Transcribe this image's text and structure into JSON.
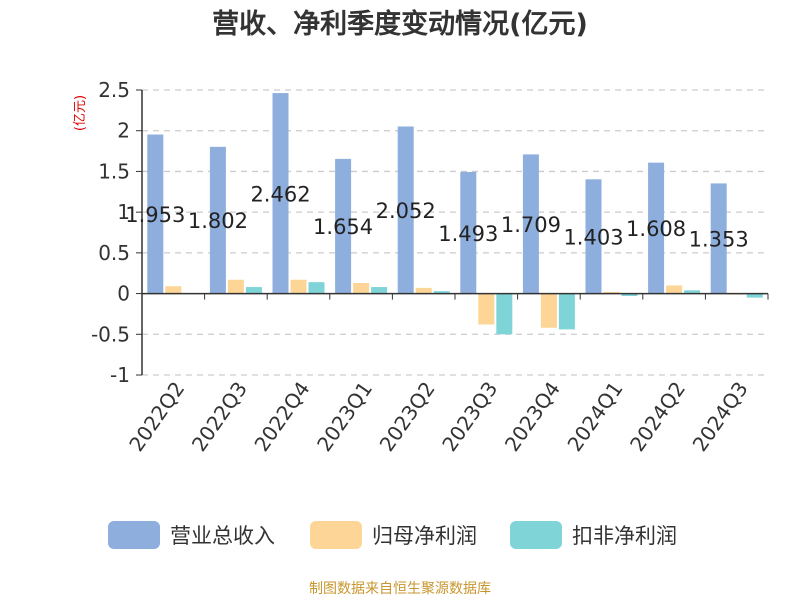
{
  "chart_data": {
    "type": "bar",
    "title": "营收、净利季度变动情况(亿元)",
    "unit_label": "(亿元)",
    "categories": [
      "2022Q2",
      "2022Q3",
      "2022Q4",
      "2023Q1",
      "2023Q2",
      "2023Q3",
      "2023Q4",
      "2024Q1",
      "2024Q2",
      "2024Q3"
    ],
    "series": [
      {
        "name": "营业总收入",
        "color": "#8eaedd",
        "values": [
          1.953,
          1.802,
          2.462,
          1.654,
          2.052,
          1.493,
          1.709,
          1.403,
          1.608,
          1.353
        ],
        "labels": [
          "1.953",
          "1.802",
          "2.462",
          "1.654",
          "2.052",
          "1.493",
          "1.709",
          "1.403",
          "1.608",
          "1.353"
        ]
      },
      {
        "name": "归母净利润",
        "color": "#fdd596",
        "values": [
          0.09,
          0.17,
          0.17,
          0.13,
          0.07,
          -0.38,
          -0.42,
          0.02,
          0.1,
          -0.01
        ]
      },
      {
        "name": "扣非净利润",
        "color": "#7fd4d7",
        "values": [
          0.005,
          0.08,
          0.14,
          0.08,
          0.03,
          -0.5,
          -0.44,
          -0.03,
          0.04,
          -0.05
        ]
      }
    ],
    "y_ticks": [
      "2.5",
      "2",
      "1.5",
      "1",
      "0.5",
      "0",
      "-0.5",
      "-1"
    ],
    "ylim": [
      -1,
      2.5
    ],
    "grid": true,
    "legend_position": "bottom"
  },
  "footer": {
    "source": "制图数据来自恒生聚源数据库"
  }
}
